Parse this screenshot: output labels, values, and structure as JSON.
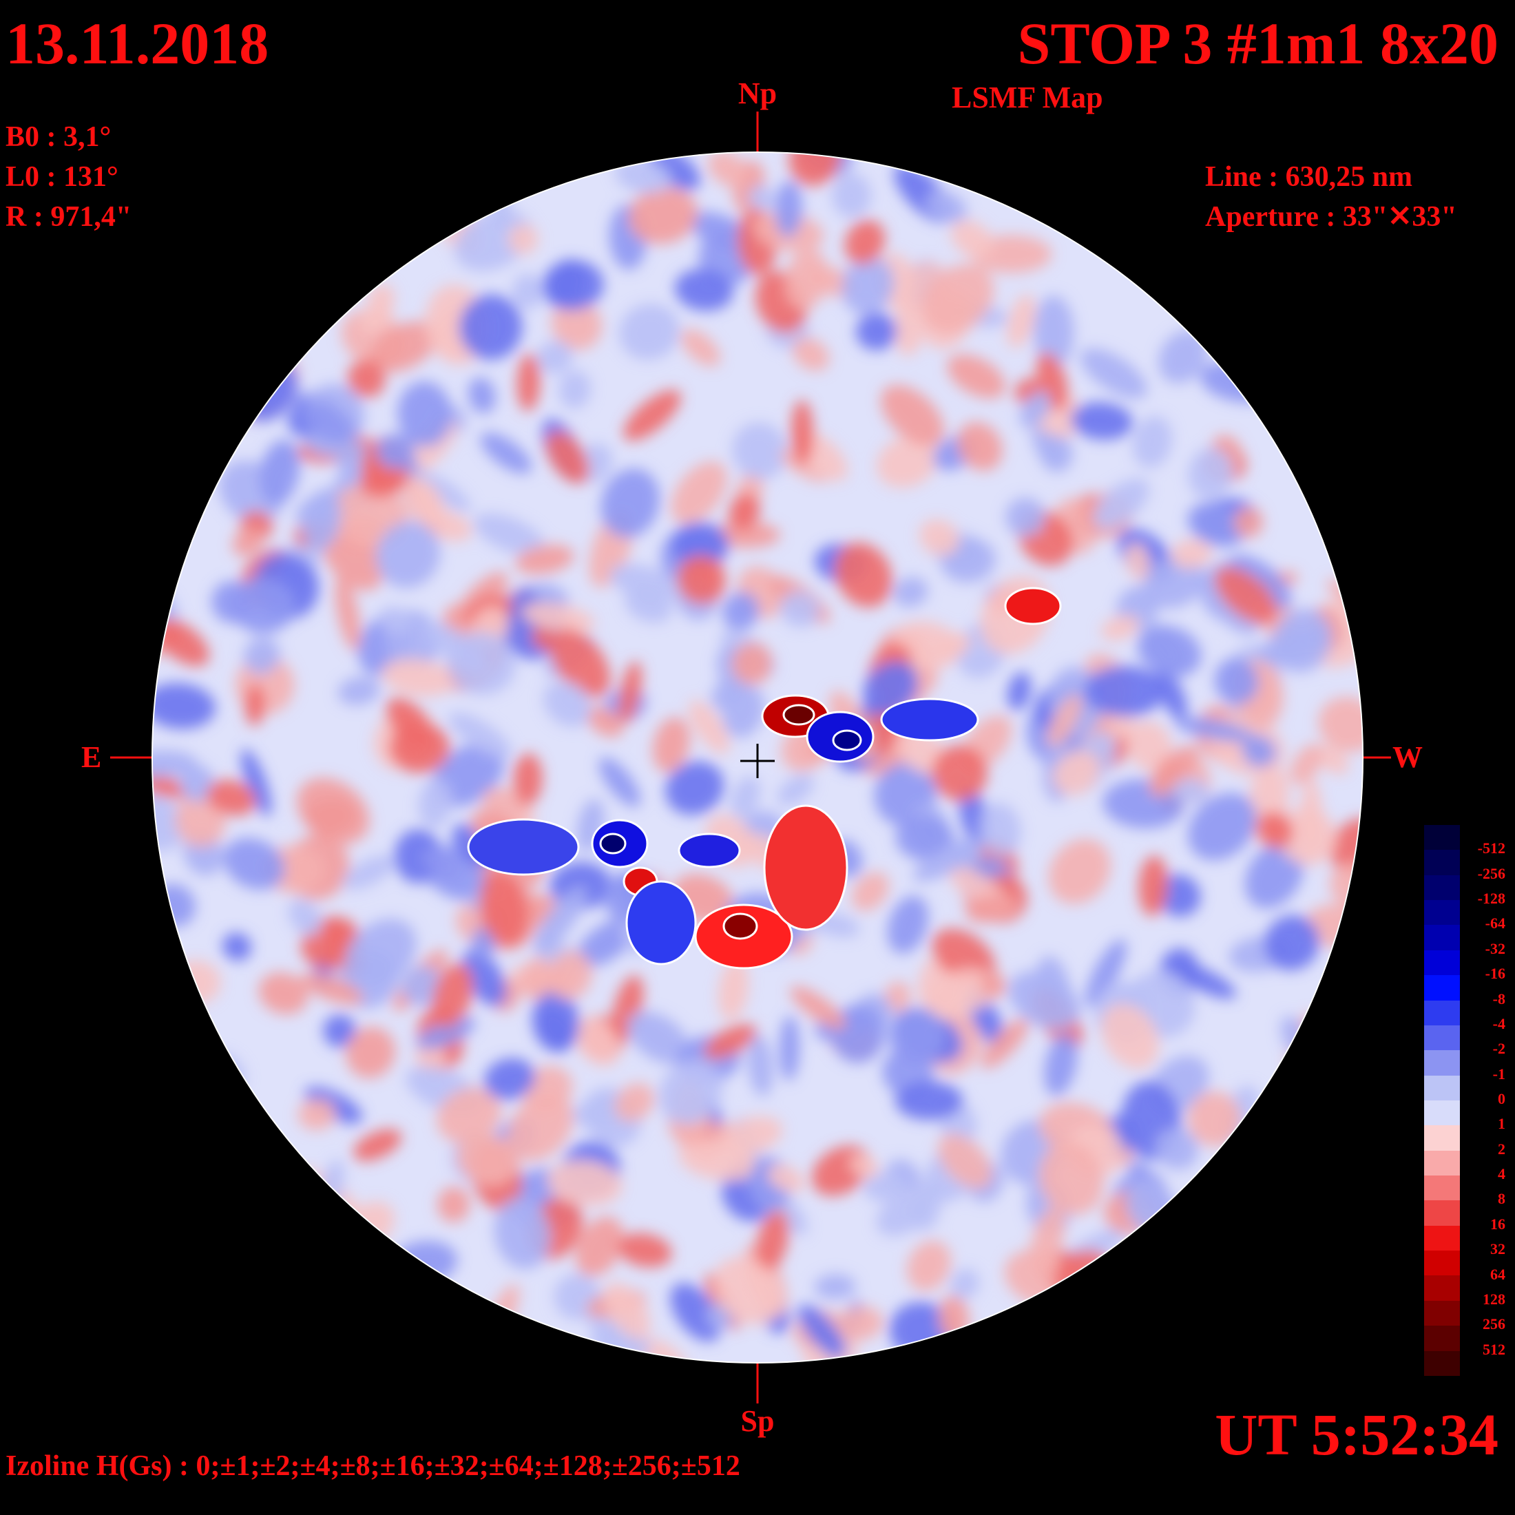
{
  "header": {
    "date": "13.11.2018",
    "title": "STOP 3 #1m1 8x20",
    "subtitle": "LSMF  Map"
  },
  "ephemeris": {
    "b0": "B0 : 3,1°",
    "l0": "L0 : 131°",
    "r": "R  : 971,4\""
  },
  "observation": {
    "line": "Line :  630,25 nm",
    "aperture": "Aperture : 33\"✕33\""
  },
  "orientation": {
    "north": "Np",
    "south": "Sp",
    "east": "E",
    "west": "W"
  },
  "time": "UT 5:52:34",
  "isolines": "Izoline H(Gs) : 0;±1;±2;±4;±8;±16;±32;±64;±128;±256;±512",
  "legend": {
    "labels": [
      "-512",
      "-256",
      "-128",
      "-64",
      "-32",
      "-16",
      "-8",
      "-4",
      "-2",
      "-1",
      "0",
      "1",
      "2",
      "4",
      "8",
      "16",
      "32",
      "64",
      "128",
      "256",
      "512"
    ],
    "colors": [
      "#000038",
      "#000055",
      "#00006e",
      "#000090",
      "#0000b0",
      "#0000d8",
      "#0010ff",
      "#2e3cf0",
      "#5a64f0",
      "#8c94f2",
      "#bcc4f6",
      "#d8dcfa",
      "#fcd2d2",
      "#f9aaaa",
      "#f47878",
      "#ee4646",
      "#ee1414",
      "#d00000",
      "#a80000",
      "#800000",
      "#5c0000",
      "#3e0000"
    ]
  },
  "map": {
    "disk_fill": "#eef0ff",
    "features": [
      {
        "type": "positive",
        "level": "strong",
        "label": "sunspot-leader-positive"
      },
      {
        "type": "negative",
        "level": "strong",
        "label": "sunspot-follower-negative"
      },
      {
        "type": "positive",
        "level": "moderate",
        "label": "plage-south-positive"
      },
      {
        "type": "negative",
        "level": "moderate",
        "label": "plage-south-negative"
      }
    ]
  }
}
